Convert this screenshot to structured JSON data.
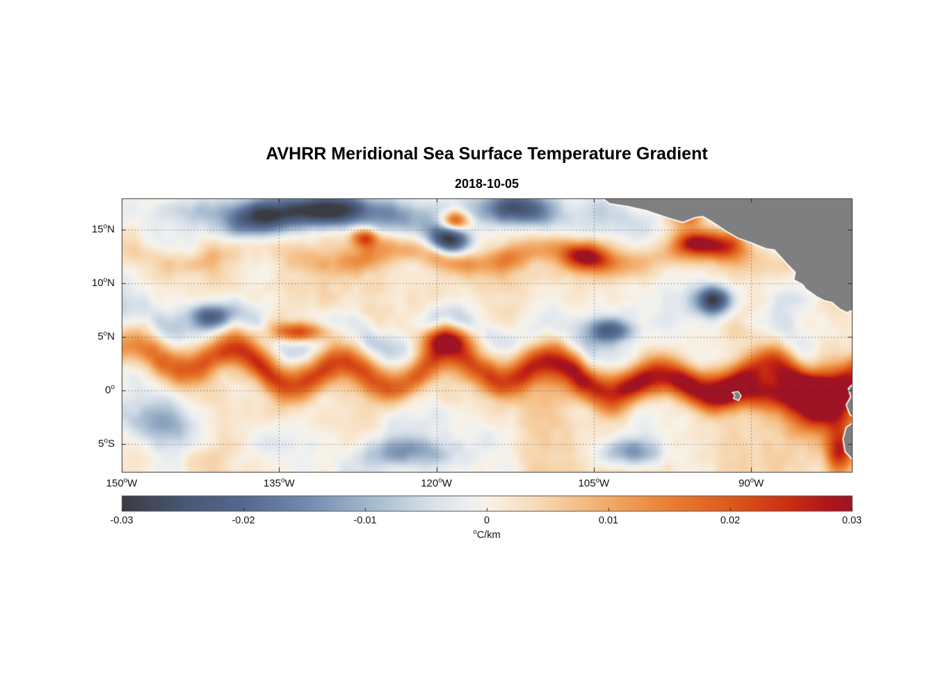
{
  "title": "AVHRR Meridional Sea Surface Temperature Gradient",
  "subtitle": "2018-10-05",
  "chart_data": {
    "type": "heatmap",
    "title": "AVHRR Meridional Sea Surface Temperature Gradient",
    "date": "2018-10-05",
    "description": "Map of meridional sea-surface-temperature gradient over the eastern tropical Pacific from AVHRR satellite data; diverging colormap, gray land mask, dotted lat/lon graticule.",
    "x_axis": {
      "tick_labels": [
        "150°W",
        "135°W",
        "120°W",
        "105°W",
        "90°W"
      ],
      "tick_values": [
        -150,
        -135,
        -120,
        -105,
        -90
      ],
      "range": [
        -150,
        -80.4
      ]
    },
    "y_axis": {
      "tick_labels": [
        "15°N",
        "10°N",
        "5°N",
        "0°",
        "5°S"
      ],
      "tick_values": [
        15,
        10,
        5,
        0,
        -5
      ],
      "range": [
        17.9,
        -7.6
      ]
    },
    "colorbar": {
      "label": "°C/km",
      "tick_labels": [
        "-0.03",
        "-0.02",
        "-0.01",
        "0",
        "0.01",
        "0.02",
        "0.03"
      ],
      "tick_values": [
        -0.03,
        -0.02,
        -0.01,
        0,
        0.01,
        0.02,
        0.03
      ],
      "range": [
        -0.03,
        0.03
      ],
      "colormap_stops": [
        {
          "t": -1.0,
          "color": "#3b3c41"
        },
        {
          "t": -0.833,
          "color": "#475673"
        },
        {
          "t": -0.667,
          "color": "#55698d"
        },
        {
          "t": -0.5,
          "color": "#7189ab"
        },
        {
          "t": -0.333,
          "color": "#9fb5cb"
        },
        {
          "t": -0.167,
          "color": "#d3dde7"
        },
        {
          "t": -0.05,
          "color": "#eef0f0"
        },
        {
          "t": 0.0,
          "color": "#f7f2e8"
        },
        {
          "t": 0.05,
          "color": "#f8ead6"
        },
        {
          "t": 0.167,
          "color": "#f6d4ab"
        },
        {
          "t": 0.333,
          "color": "#f2aa66"
        },
        {
          "t": 0.5,
          "color": "#e87f33"
        },
        {
          "t": 0.667,
          "color": "#dd5a1b"
        },
        {
          "t": 0.833,
          "color": "#cb2d11"
        },
        {
          "t": 0.93,
          "color": "#b0161a"
        },
        {
          "t": 1.0,
          "color": "#9e1424"
        }
      ]
    },
    "land_color": "#7f7f7f",
    "notable_features": [
      "Strong positive (red/orange) gradient band meandering along 0-5°N across the basin (equatorial front / tropical instability waves)",
      "Strongest positive gradients (dark red) near 105-85°W just north of the equator and along the Ecuador-Peru coast",
      "Patchy negative (blue) gradients between 13-18°N, strongest near 120°W, 14°N and 125-135°W, 16-17°N",
      "Weak near-zero gradients (pale) between 6-10°N and south of 3°S",
      "Gray land mask: Central America (upper right), South America (lower right), Galapagos Islands near 91°W, 0.5°S",
      "White region northeast of Central America: no data (Caribbean side)"
    ]
  }
}
